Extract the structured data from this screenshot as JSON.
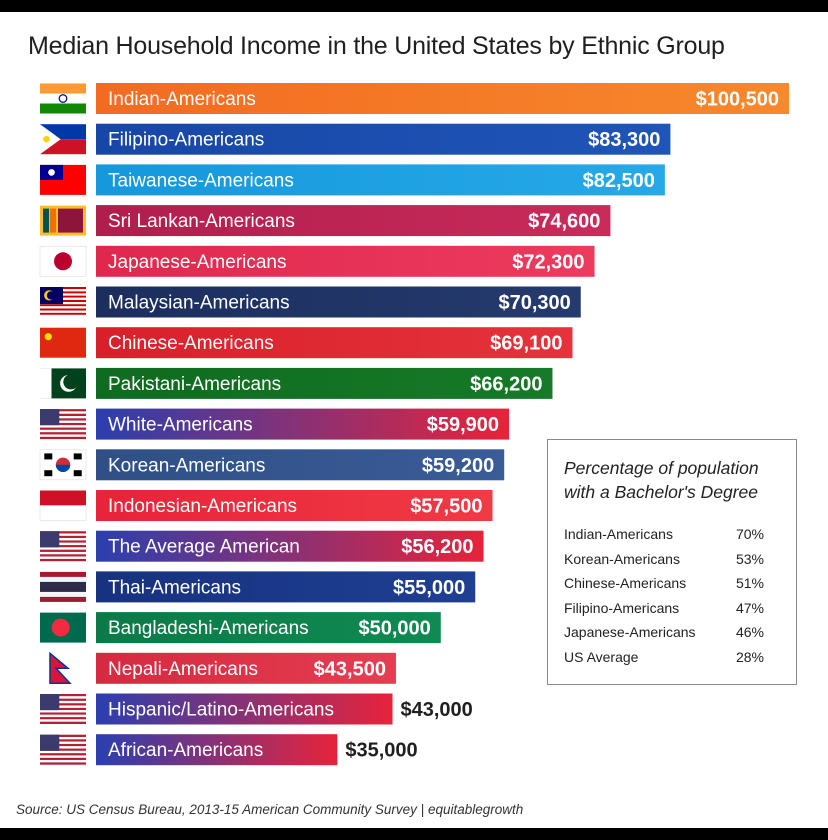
{
  "chart_data": {
    "type": "bar",
    "orientation": "horizontal",
    "title": "Median Household Income in the United States  by Ethnic Group",
    "xlim": [
      0,
      100500
    ],
    "categories": [
      "Indian-Americans",
      "Filipino-Americans",
      "Taiwanese-Americans",
      "Sri Lankan-Americans",
      "Japanese-Americans",
      "Malaysian-Americans",
      "Chinese-Americans",
      "Pakistani-Americans",
      "White-Americans",
      "Korean-Americans",
      "Indonesian-Americans",
      "The Average American",
      "Thai-Americans",
      "Bangladeshi-Americans",
      "Nepali-Americans",
      "Hispanic/Latino-Americans",
      "African-Americans"
    ],
    "values": [
      100500,
      83300,
      82500,
      74600,
      72300,
      70300,
      69100,
      66200,
      59900,
      59200,
      57500,
      56200,
      55000,
      50000,
      43500,
      43000,
      35000
    ],
    "value_labels": [
      "$100,500",
      "$83,300",
      "$82,500",
      "$74,600",
      "$72,300",
      "$70,300",
      "$69,100",
      "$66,200",
      "$59,900",
      "$59,200",
      "$57,500",
      "$56,200",
      "$55,000",
      "$50,000",
      "$43,500",
      "$43,000",
      "$35,000"
    ],
    "bar_colors": [
      [
        "#f26b21",
        "#f7882c"
      ],
      [
        "#1747a6",
        "#1f55b8"
      ],
      [
        "#1598dc",
        "#27a9e8"
      ],
      [
        "#b01e4e",
        "#c92b5a"
      ],
      [
        "#e0284e",
        "#ec3b5e"
      ],
      [
        "#1b2e5e",
        "#253a6e"
      ],
      [
        "#d91f2a",
        "#e5333b"
      ],
      [
        "#0f6b1f",
        "#167a28"
      ],
      [
        "#2b3fae",
        "#e8233a"
      ],
      [
        "#2f4f86",
        "#3a5c97"
      ],
      [
        "#e8233a",
        "#f03a44"
      ],
      [
        "#2b3fae",
        "#e8233a"
      ],
      [
        "#17327e",
        "#1f3f93"
      ],
      [
        "#0b7a48",
        "#0f8a52"
      ],
      [
        "#d52a3f",
        "#e53d51"
      ],
      [
        "#2b3fae",
        "#e8233a"
      ],
      [
        "#2b3fae",
        "#e8233a"
      ]
    ],
    "flags": [
      "india-flag",
      "philippines-flag",
      "taiwan-flag",
      "sri-lanka-flag",
      "japan-flag",
      "malaysia-flag",
      "china-flag",
      "pakistan-flag",
      "usa-flag",
      "south-korea-flag",
      "indonesia-flag",
      "usa-flag",
      "thailand-flag",
      "bangladesh-flag",
      "nepal-flag",
      "usa-flag",
      "usa-flag"
    ]
  },
  "education": {
    "title": "Percentage of population with a Bachelor's Degree",
    "rows": [
      {
        "label": "Indian-Americans",
        "value": "70%"
      },
      {
        "label": "Korean-Americans",
        "value": "53%"
      },
      {
        "label": "Chinese-Americans",
        "value": "51%"
      },
      {
        "label": "Filipino-Americans",
        "value": "47%"
      },
      {
        "label": "Japanese-Americans",
        "value": "46%"
      },
      {
        "label": "US Average",
        "value": "28%"
      }
    ]
  },
  "source": "Source: US Census Bureau, 2013-15 American Community Survey | equitablegrowth"
}
